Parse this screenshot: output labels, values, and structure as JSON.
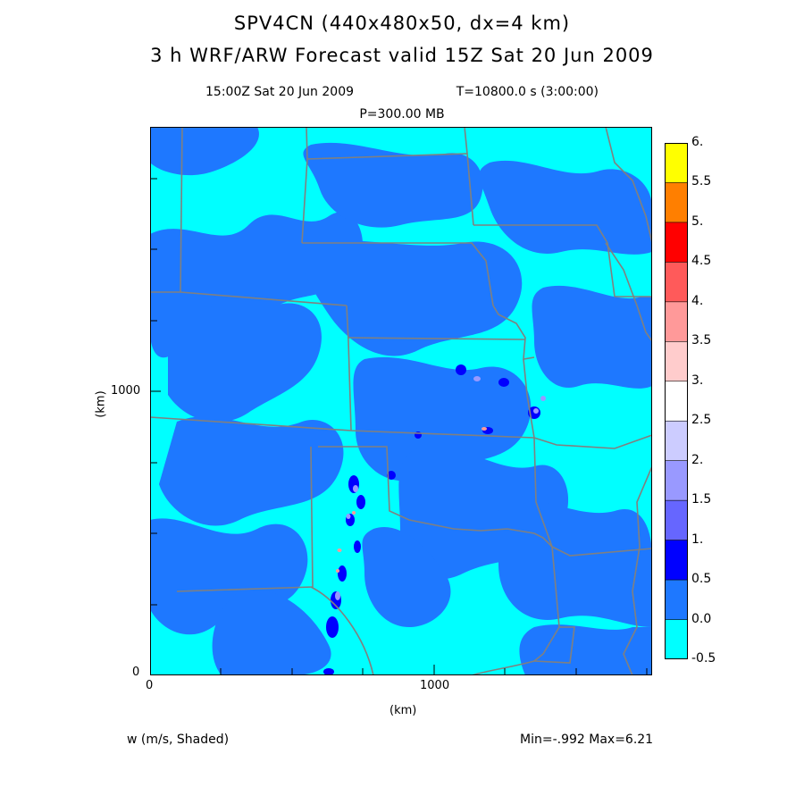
{
  "header": {
    "title_line1": "SPV4CN (440x480x50, dx=4 km)",
    "title_line2": "3 h WRF/ARW Forecast valid 15Z Sat 20 Jun 2009",
    "valid_time": "15:00Z Sat 20 Jun 2009",
    "forecast_time": "T=10800.0 s (3:00:00)",
    "level": "P=300.00 MB"
  },
  "axes": {
    "x_unit": "(km)",
    "y_unit": "(km)",
    "x_ticks": [
      "0",
      "1000"
    ],
    "y_ticks": [
      "0",
      "1000"
    ]
  },
  "colorbar": {
    "labels": [
      "6.",
      "5.5",
      "5.",
      "4.5",
      "4.",
      "3.5",
      "3.",
      "2.5",
      "2.",
      "1.5",
      "1.",
      "0.5",
      "0.0",
      "-0.5"
    ],
    "colors": [
      "#ffff00",
      "#ff7f00",
      "#ff0000",
      "#ff5a5a",
      "#ff9999",
      "#ffcccc",
      "#ffffff",
      "#ccccff",
      "#9999ff",
      "#6666ff",
      "#0000ff",
      "#1e78ff",
      "#00ffff"
    ]
  },
  "footer": {
    "field": "w (m/s, Shaded)",
    "minmax": "Min=-.992 Max=6.21"
  },
  "map_colors": {
    "background": "#00ffff",
    "patch": "#1e78ff",
    "strong": "#0000ff",
    "borders": "#808080"
  }
}
